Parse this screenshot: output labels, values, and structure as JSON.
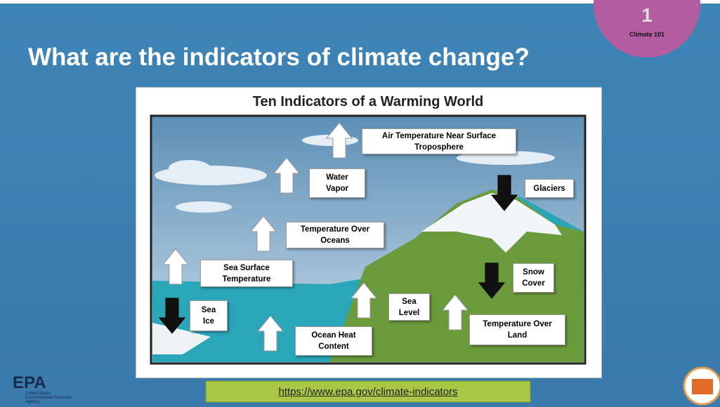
{
  "slide": {
    "title": "What are the indicators of climate change?",
    "badge": {
      "number": "1",
      "label": "Climate 101"
    },
    "figure": {
      "title": "Ten Indicators of a Warming World",
      "indicators": [
        {
          "lines": [
            "Air Temperature Near Surface",
            "Troposphere"
          ],
          "direction": "up"
        },
        {
          "lines": [
            "Water",
            "Vapor"
          ],
          "direction": "up"
        },
        {
          "lines": [
            "Glaciers"
          ],
          "direction": "down"
        },
        {
          "lines": [
            "Temperature Over",
            "Oceans"
          ],
          "direction": "up"
        },
        {
          "lines": [
            "Sea Surface",
            "Temperature"
          ],
          "direction": "up"
        },
        {
          "lines": [
            "Snow",
            "Cover"
          ],
          "direction": "down"
        },
        {
          "lines": [
            "Sea",
            "Ice"
          ],
          "direction": "down"
        },
        {
          "lines": [
            "Sea",
            "Level"
          ],
          "direction": "up"
        },
        {
          "lines": [
            "Temperature Over",
            "Land"
          ],
          "direction": "up"
        },
        {
          "lines": [
            "Ocean Heat",
            "Content"
          ],
          "direction": "up"
        }
      ]
    },
    "logo": {
      "name": "EPA",
      "lines": [
        "United States",
        "Environmental Protection",
        "Agency"
      ]
    },
    "link": "https://www.epa.gov/climate-indicators"
  }
}
